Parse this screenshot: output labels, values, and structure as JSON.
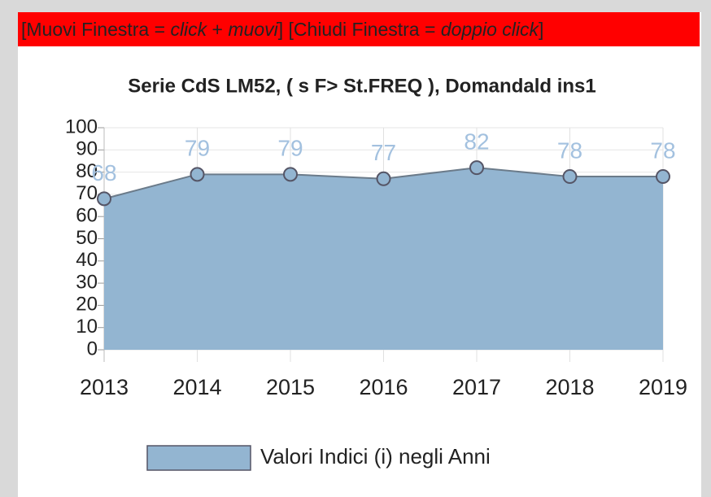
{
  "header": [
    {
      "text": "[Muovi Finestra = ",
      "italic": false
    },
    {
      "text": "click",
      "italic": true
    },
    {
      "text": " + ",
      "italic": false
    },
    {
      "text": "muovi",
      "italic": true
    },
    {
      "text": "] [Chiudi Finestra = ",
      "italic": false
    },
    {
      "text": "doppio click",
      "italic": true
    },
    {
      "text": "]",
      "italic": false
    }
  ],
  "chart_data": {
    "type": "area",
    "title": "Serie  CdS  LM52, ( s F> St.FREQ ), Domandald ins1",
    "categories": [
      "2013",
      "2014",
      "2015",
      "2016",
      "2017",
      "2018",
      "2019"
    ],
    "series": [
      {
        "name": "Valori Indici (i) negli Anni",
        "color": "#93b5d1",
        "values": [
          68,
          79,
          79,
          77,
          82,
          78,
          78
        ]
      }
    ],
    "ylim": [
      0,
      100
    ],
    "yticks": [
      0,
      10,
      20,
      30,
      40,
      50,
      60,
      70,
      80,
      90,
      100
    ],
    "grid": true,
    "legend": "bottom"
  }
}
